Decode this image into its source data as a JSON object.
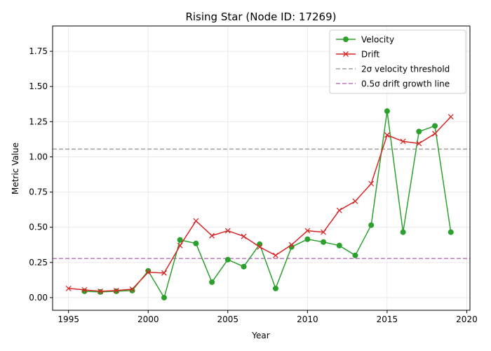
{
  "chart_data": {
    "type": "line",
    "title": "Rising Star (Node ID: 17269)",
    "xlabel": "Year",
    "ylabel": "Metric Value",
    "xlim": [
      1994,
      2020.2
    ],
    "ylim": [
      -0.09,
      1.93
    ],
    "xticks": [
      1995,
      2000,
      2005,
      2010,
      2015,
      2020
    ],
    "yticks": [
      0.0,
      0.25,
      0.5,
      0.75,
      1.0,
      1.25,
      1.5,
      1.75
    ],
    "ytick_labels": [
      "0.00",
      "0.25",
      "0.50",
      "0.75",
      "1.00",
      "1.25",
      "1.50",
      "1.75"
    ],
    "grid": true,
    "legend_position": "top-right",
    "series": [
      {
        "name": "Velocity",
        "color": "#2ca02c",
        "marker": "circle",
        "x": [
          1996,
          1997,
          1998,
          1999,
          2000,
          2001,
          2002,
          2003,
          2004,
          2005,
          2006,
          2007,
          2008,
          2009,
          2010,
          2011,
          2012,
          2013,
          2014,
          2015,
          2016,
          2017,
          2018,
          2019
        ],
        "y": [
          0.045,
          0.04,
          0.045,
          0.05,
          0.19,
          0.0,
          0.41,
          0.385,
          0.11,
          0.27,
          0.22,
          0.38,
          0.065,
          0.36,
          0.415,
          0.395,
          0.37,
          0.3,
          0.515,
          1.325,
          0.465,
          1.18,
          1.22,
          0.465
        ]
      },
      {
        "name": "Drift",
        "color": "#d62728",
        "marker": "x",
        "x": [
          1995,
          1996,
          1997,
          1998,
          1999,
          2000,
          2001,
          2002,
          2003,
          2004,
          2005,
          2006,
          2007,
          2008,
          2009,
          2010,
          2011,
          2012,
          2013,
          2014,
          2015,
          2016,
          2017,
          2018,
          2019
        ],
        "y": [
          0.065,
          0.055,
          0.045,
          0.05,
          0.06,
          0.18,
          0.175,
          0.37,
          0.545,
          0.44,
          0.475,
          0.435,
          0.36,
          0.3,
          0.375,
          0.475,
          0.465,
          0.62,
          0.685,
          0.81,
          1.155,
          1.11,
          1.095,
          1.165,
          1.285
        ]
      }
    ],
    "reference_lines": [
      {
        "name": "2σ velocity threshold",
        "y": 1.055,
        "color": "#a0a0a0",
        "style": "dashed"
      },
      {
        "name": "0.5σ drift growth line",
        "y": 0.278,
        "color": "#bf77bf",
        "style": "dashed"
      }
    ]
  }
}
